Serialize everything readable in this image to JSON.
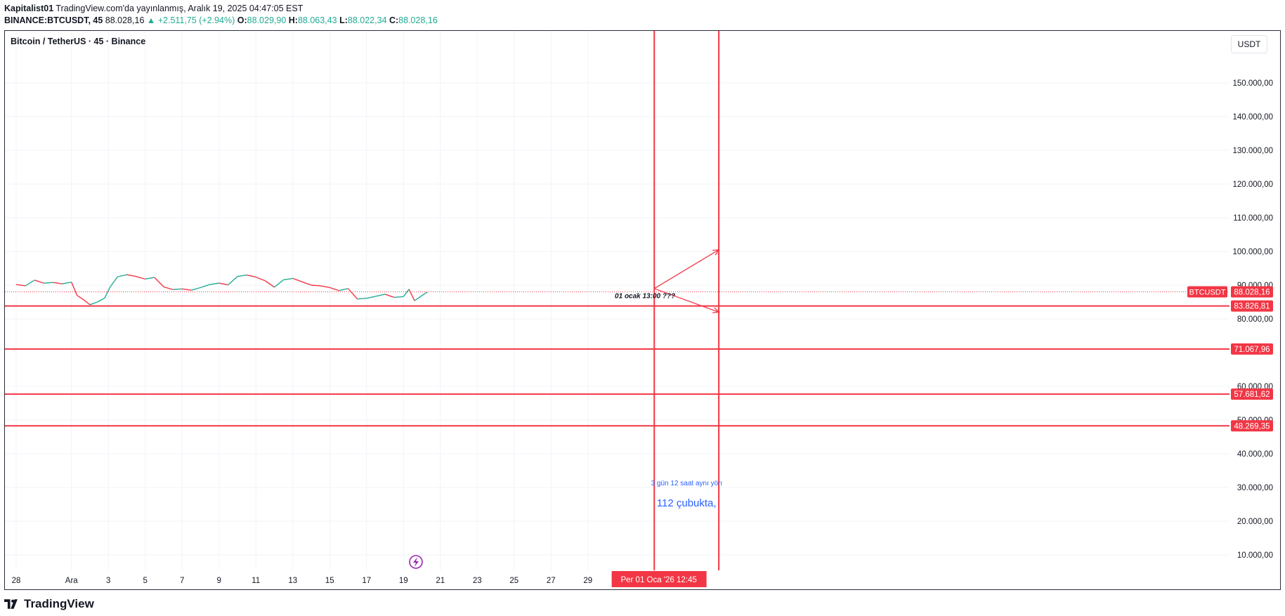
{
  "header": {
    "author": "Kapitalist01",
    "published_text": "TradingView.com'da yayınlanmış, Aralık 19, 2025 04:47:05 EST",
    "symbol_line": "BINANCE:BTCUSDT, 45",
    "last": "88.028,16",
    "change": "▲ +2.511,75 (+2.94%)",
    "o_label": "O:",
    "o_val": "88.029,90",
    "h_label": "H:",
    "h_val": "88.063,43",
    "l_label": "L:",
    "l_val": "88.022,34",
    "c_label": "C:",
    "c_val": "88.028,16"
  },
  "chart_title": "Bitcoin / TetherUS · 45 · Binance",
  "currency": "USDT",
  "footer": {
    "brand": "TradingView",
    "logo_icon": "tradingview-logo-icon"
  },
  "colors": {
    "up": "#22ab94",
    "down": "#f23645",
    "line_red": "#f23645",
    "note_blue": "#2962ff",
    "grid": "#f0f3fa"
  },
  "chart_data": {
    "type": "candlestick",
    "title": "Bitcoin / TetherUS · 45 · Binance",
    "y_axis": {
      "unit": "USDT",
      "range": [
        0,
        165000
      ],
      "ticks": [
        {
          "value": 150000,
          "label": "150.000,00"
        },
        {
          "value": 140000,
          "label": "140.000,00"
        },
        {
          "value": 130000,
          "label": "130.000,00"
        },
        {
          "value": 120000,
          "label": "120.000,00"
        },
        {
          "value": 110000,
          "label": "110.000,00"
        },
        {
          "value": 100000,
          "label": "100.000,00"
        },
        {
          "value": 90000,
          "label": "90.000,00"
        },
        {
          "value": 80000,
          "label": "80.000,00"
        },
        {
          "value": 60000,
          "label": "60.000,00"
        },
        {
          "value": 50000,
          "label": "50.000,00"
        },
        {
          "value": 40000,
          "label": "40.000,00"
        },
        {
          "value": 30000,
          "label": "30.000,00"
        },
        {
          "value": 20000,
          "label": "20.000,00"
        },
        {
          "value": 10000,
          "label": "10.000,00"
        }
      ]
    },
    "x_axis": {
      "range": [
        0,
        37
      ],
      "ticks": [
        {
          "day": 0,
          "label": "28"
        },
        {
          "day": 3,
          "label": "Ara"
        },
        {
          "day": 5,
          "label": "3"
        },
        {
          "day": 7,
          "label": "5"
        },
        {
          "day": 9,
          "label": "7"
        },
        {
          "day": 11,
          "label": "9"
        },
        {
          "day": 13,
          "label": "11"
        },
        {
          "day": 15,
          "label": "13"
        },
        {
          "day": 17,
          "label": "15"
        },
        {
          "day": 19,
          "label": "17"
        },
        {
          "day": 21,
          "label": "19"
        },
        {
          "day": 23,
          "label": "21"
        },
        {
          "day": 25,
          "label": "23"
        },
        {
          "day": 27,
          "label": "25"
        },
        {
          "day": 29,
          "label": "27"
        },
        {
          "day": 31,
          "label": "29"
        }
      ],
      "cursor_label": "Per 01 Oca '26   12:45",
      "cursor_day": 34.5
    },
    "price_path": [
      [
        0.0,
        90200
      ],
      [
        0.5,
        89800
      ],
      [
        1.0,
        91500
      ],
      [
        1.5,
        90600
      ],
      [
        2.0,
        90800
      ],
      [
        2.5,
        90400
      ],
      [
        3.0,
        90900
      ],
      [
        3.3,
        87000
      ],
      [
        3.7,
        85500
      ],
      [
        4.0,
        84200
      ],
      [
        4.4,
        85000
      ],
      [
        4.8,
        86200
      ],
      [
        5.1,
        89500
      ],
      [
        5.5,
        92500
      ],
      [
        6.0,
        93100
      ],
      [
        6.5,
        92600
      ],
      [
        7.0,
        91800
      ],
      [
        7.5,
        92300
      ],
      [
        8.0,
        89500
      ],
      [
        8.5,
        88700
      ],
      [
        9.0,
        88900
      ],
      [
        9.5,
        88500
      ],
      [
        10.0,
        89300
      ],
      [
        10.5,
        90200
      ],
      [
        11.0,
        90600
      ],
      [
        11.5,
        90100
      ],
      [
        12.0,
        92600
      ],
      [
        12.5,
        93000
      ],
      [
        13.0,
        92400
      ],
      [
        13.5,
        91300
      ],
      [
        14.0,
        89400
      ],
      [
        14.5,
        91600
      ],
      [
        15.0,
        92000
      ],
      [
        15.5,
        91000
      ],
      [
        16.0,
        90000
      ],
      [
        16.5,
        89800
      ],
      [
        17.0,
        89300
      ],
      [
        17.5,
        88400
      ],
      [
        18.0,
        89000
      ],
      [
        18.5,
        85900
      ],
      [
        19.0,
        86100
      ],
      [
        19.5,
        86700
      ],
      [
        20.0,
        87300
      ],
      [
        20.5,
        86400
      ],
      [
        21.0,
        86600
      ],
      [
        21.3,
        88800
      ],
      [
        21.6,
        85400
      ],
      [
        22.0,
        86900
      ],
      [
        22.3,
        88000
      ]
    ],
    "current_price": {
      "value": 88028.16,
      "label": "88.028,16",
      "tag": "BTCUSDT"
    },
    "horizontal_levels": [
      {
        "value": 83826.81,
        "label": "83.826,81"
      },
      {
        "value": 71067.96,
        "label": "71.067,96"
      },
      {
        "value": 57681.62,
        "label": "57.681,62"
      },
      {
        "value": 48269.35,
        "label": "48.269,35"
      }
    ],
    "vertical_lines": [
      {
        "day": 34.6
      },
      {
        "day": 38.1
      }
    ],
    "arrows": [
      {
        "from": [
          34.6,
          89000
        ],
        "to": [
          38.1,
          100500
        ]
      },
      {
        "from": [
          34.6,
          89000
        ],
        "to": [
          38.1,
          82000
        ]
      }
    ],
    "annotations": [
      {
        "text": "01 ocak 13:00 ???",
        "day": 34.1,
        "value": 86100,
        "style": "italic-bold-black"
      },
      {
        "text": "3 gün 12 saat aynı yön",
        "day": 36.35,
        "value": 30600,
        "style": "blue-small"
      },
      {
        "text": "112 çubukta,",
        "day": 36.35,
        "value": 24400,
        "style": "blue-large"
      }
    ],
    "grid": true
  }
}
